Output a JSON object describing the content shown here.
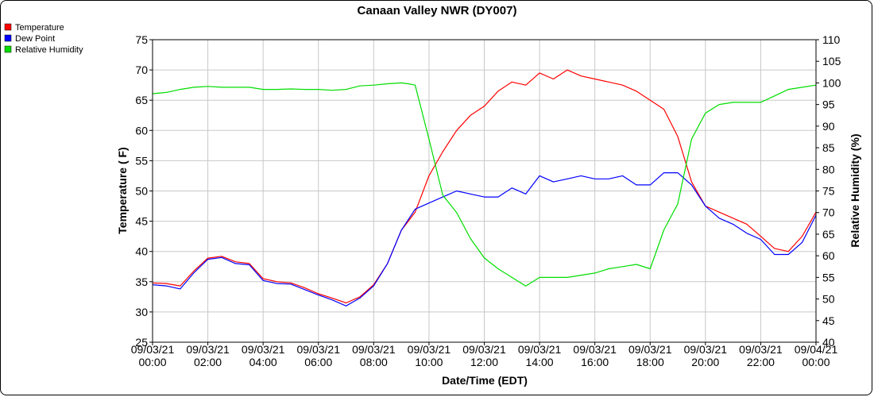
{
  "chart_data": {
    "type": "line",
    "title": "Canaan Valley NWR (DY007)",
    "xlabel": "Date/Time (EDT)",
    "ylabel": "Temperature ( F)",
    "y2label": "Relative Humidity (%)",
    "ylim": [
      25,
      75
    ],
    "y2lim": [
      40,
      110
    ],
    "yticks": [
      25,
      30,
      35,
      40,
      45,
      50,
      55,
      60,
      65,
      70,
      75
    ],
    "y2ticks": [
      40,
      45,
      50,
      55,
      60,
      65,
      70,
      75,
      80,
      85,
      90,
      95,
      100,
      105,
      110
    ],
    "xlim": [
      "09/03/21 00:00",
      "09/04/21 00:00"
    ],
    "xticks": [
      {
        "date": "09/03/21",
        "time": "00:00"
      },
      {
        "date": "09/03/21",
        "time": "02:00"
      },
      {
        "date": "09/03/21",
        "time": "04:00"
      },
      {
        "date": "09/03/21",
        "time": "06:00"
      },
      {
        "date": "09/03/21",
        "time": "08:00"
      },
      {
        "date": "09/03/21",
        "time": "10:00"
      },
      {
        "date": "09/03/21",
        "time": "12:00"
      },
      {
        "date": "09/03/21",
        "time": "14:00"
      },
      {
        "date": "09/03/21",
        "time": "16:00"
      },
      {
        "date": "09/03/21",
        "time": "18:00"
      },
      {
        "date": "09/03/21",
        "time": "20:00"
      },
      {
        "date": "09/03/21",
        "time": "22:00"
      },
      {
        "date": "09/04/21",
        "time": "00:00"
      }
    ],
    "grid": true,
    "legend_position": "top-left",
    "series": [
      {
        "name": "Temperature",
        "color": "#ff0000",
        "axis": "left",
        "x": [
          "09/03/21 00:00",
          "09/03/21 00:30",
          "09/03/21 01:00",
          "09/03/21 01:30",
          "09/03/21 02:00",
          "09/03/21 02:30",
          "09/03/21 03:00",
          "09/03/21 03:30",
          "09/03/21 04:00",
          "09/03/21 04:30",
          "09/03/21 05:00",
          "09/03/21 05:30",
          "09/03/21 06:00",
          "09/03/21 06:30",
          "09/03/21 07:00",
          "09/03/21 07:30",
          "09/03/21 08:00",
          "09/03/21 08:30",
          "09/03/21 09:00",
          "09/03/21 09:30",
          "09/03/21 10:00",
          "09/03/21 10:30",
          "09/03/21 11:00",
          "09/03/21 11:30",
          "09/03/21 12:00",
          "09/03/21 12:30",
          "09/03/21 13:00",
          "09/03/21 13:30",
          "09/03/21 14:00",
          "09/03/21 14:30",
          "09/03/21 15:00",
          "09/03/21 15:30",
          "09/03/21 16:00",
          "09/03/21 16:30",
          "09/03/21 17:00",
          "09/03/21 17:30",
          "09/03/21 18:00",
          "09/03/21 18:30",
          "09/03/21 19:00",
          "09/03/21 19:30",
          "09/03/21 20:00",
          "09/03/21 20:30",
          "09/03/21 21:00",
          "09/03/21 21:30",
          "09/03/21 22:00",
          "09/03/21 22:30",
          "09/03/21 23:00",
          "09/03/21 23:30",
          "09/04/21 00:00"
        ],
        "values": [
          34.8,
          34.7,
          34.3,
          36.8,
          38.9,
          39.2,
          38.3,
          38.0,
          35.5,
          35.0,
          34.8,
          34.0,
          33.0,
          32.3,
          31.5,
          32.5,
          34.5,
          38.0,
          43.5,
          46.5,
          52.5,
          56.5,
          60.0,
          62.5,
          64.0,
          66.5,
          68.0,
          67.5,
          69.5,
          68.5,
          70.0,
          69.0,
          68.5,
          68.0,
          67.5,
          66.5,
          65.0,
          63.5,
          59.0,
          51.5,
          47.5,
          46.5,
          45.5,
          44.5,
          42.5,
          40.5,
          40.0,
          42.5,
          46.5
        ]
      },
      {
        "name": "Dew Point",
        "color": "#0000ff",
        "axis": "left",
        "x": [
          "09/03/21 00:00",
          "09/03/21 00:30",
          "09/03/21 01:00",
          "09/03/21 01:30",
          "09/03/21 02:00",
          "09/03/21 02:30",
          "09/03/21 03:00",
          "09/03/21 03:30",
          "09/03/21 04:00",
          "09/03/21 04:30",
          "09/03/21 05:00",
          "09/03/21 05:30",
          "09/03/21 06:00",
          "09/03/21 06:30",
          "09/03/21 07:00",
          "09/03/21 07:30",
          "09/03/21 08:00",
          "09/03/21 08:30",
          "09/03/21 09:00",
          "09/03/21 09:30",
          "09/03/21 10:00",
          "09/03/21 10:30",
          "09/03/21 11:00",
          "09/03/21 11:30",
          "09/03/21 12:00",
          "09/03/21 12:30",
          "09/03/21 13:00",
          "09/03/21 13:30",
          "09/03/21 14:00",
          "09/03/21 14:30",
          "09/03/21 15:00",
          "09/03/21 15:30",
          "09/03/21 16:00",
          "09/03/21 16:30",
          "09/03/21 17:00",
          "09/03/21 17:30",
          "09/03/21 18:00",
          "09/03/21 18:30",
          "09/03/21 19:00",
          "09/03/21 19:30",
          "09/03/21 20:00",
          "09/03/21 20:30",
          "09/03/21 21:00",
          "09/03/21 21:30",
          "09/03/21 22:00",
          "09/03/21 22:30",
          "09/03/21 23:00",
          "09/03/21 23:30",
          "09/04/21 00:00"
        ],
        "values": [
          34.5,
          34.3,
          33.8,
          36.5,
          38.7,
          39.0,
          38.0,
          37.8,
          35.2,
          34.7,
          34.6,
          33.7,
          32.8,
          32.0,
          31.0,
          32.3,
          34.3,
          38.0,
          43.5,
          47.0,
          48.0,
          49.0,
          50.0,
          49.5,
          49.0,
          49.0,
          50.5,
          49.5,
          52.5,
          51.5,
          52.0,
          52.5,
          52.0,
          52.0,
          52.5,
          51.0,
          51.0,
          53.0,
          53.0,
          51.0,
          47.5,
          45.5,
          44.5,
          43.0,
          42.0,
          39.5,
          39.5,
          41.5,
          46.0
        ]
      },
      {
        "name": "Relative Humidity",
        "color": "#00dd00",
        "axis": "right",
        "x": [
          "09/03/21 00:00",
          "09/03/21 00:30",
          "09/03/21 01:00",
          "09/03/21 01:30",
          "09/03/21 02:00",
          "09/03/21 02:30",
          "09/03/21 03:00",
          "09/03/21 03:30",
          "09/03/21 04:00",
          "09/03/21 04:30",
          "09/03/21 05:00",
          "09/03/21 05:30",
          "09/03/21 06:00",
          "09/03/21 06:30",
          "09/03/21 07:00",
          "09/03/21 07:30",
          "09/03/21 08:00",
          "09/03/21 08:30",
          "09/03/21 09:00",
          "09/03/21 09:15",
          "09/03/21 09:30",
          "09/03/21 10:00",
          "09/03/21 10:30",
          "09/03/21 11:00",
          "09/03/21 11:30",
          "09/03/21 12:00",
          "09/03/21 12:30",
          "09/03/21 13:00",
          "09/03/21 13:30",
          "09/03/21 14:00",
          "09/03/21 14:30",
          "09/03/21 15:00",
          "09/03/21 15:30",
          "09/03/21 16:00",
          "09/03/21 16:30",
          "09/03/21 17:00",
          "09/03/21 17:30",
          "09/03/21 18:00",
          "09/03/21 18:30",
          "09/03/21 19:00",
          "09/03/21 19:30",
          "09/03/21 20:00",
          "09/03/21 20:30",
          "09/03/21 21:00",
          "09/03/21 21:30",
          "09/03/21 22:00",
          "09/03/21 22:30",
          "09/03/21 23:00",
          "09/03/21 23:30",
          "09/04/21 00:00"
        ],
        "values": [
          97.5,
          97.8,
          98.5,
          99.0,
          99.2,
          99.0,
          99.0,
          99.0,
          98.5,
          98.5,
          98.6,
          98.5,
          98.5,
          98.3,
          98.5,
          99.3,
          99.5,
          99.8,
          100.0,
          99.8,
          99.5,
          87.0,
          74.0,
          70.0,
          64.0,
          59.5,
          57.0,
          55.0,
          53.0,
          55.0,
          55.0,
          55.0,
          55.5,
          56.0,
          57.0,
          57.5,
          58.0,
          57.0,
          66.0,
          72.0,
          87.0,
          93.0,
          95.0,
          95.5,
          95.5,
          95.5,
          97.0,
          98.5,
          99.0,
          99.5
        ]
      }
    ]
  }
}
